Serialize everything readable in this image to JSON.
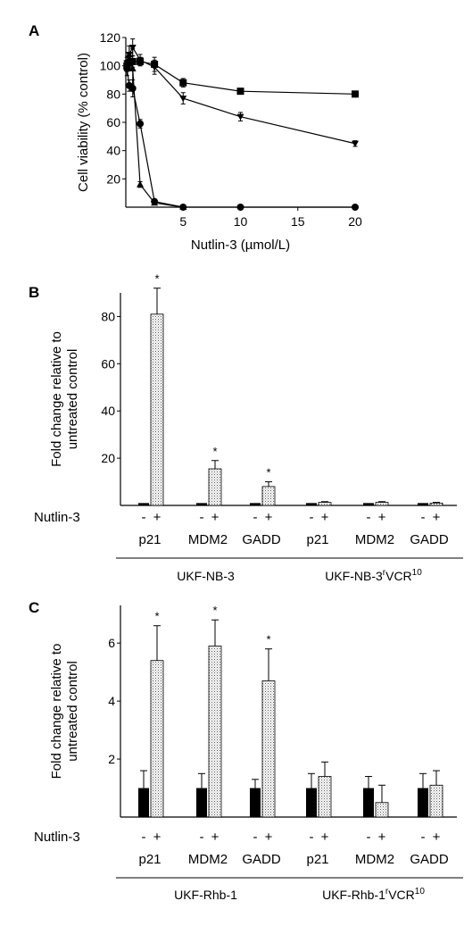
{
  "panels": {
    "A": "A",
    "B": "B",
    "C": "C"
  },
  "chart_data": [
    {
      "type": "line",
      "panel": "A",
      "xlabel": "Nutlin-3 (µmol/L)",
      "ylabel": "Cell viability (% control)",
      "xlim": [
        0,
        20
      ],
      "ylim": [
        0,
        120
      ],
      "xticks": [
        5,
        10,
        15,
        20
      ],
      "yticks": [
        20,
        40,
        60,
        80,
        100,
        120
      ],
      "series": [
        {
          "marker": "square",
          "x": [
            0.1,
            0.3,
            0.6,
            1.25,
            2.5,
            5,
            10,
            20
          ],
          "y": [
            100,
            102,
            103,
            103,
            101,
            88,
            82,
            80
          ],
          "err": [
            3,
            4,
            4,
            3,
            5,
            3,
            2,
            2
          ]
        },
        {
          "marker": "triangle-down",
          "x": [
            0.1,
            0.3,
            0.6,
            1.25,
            2.5,
            5,
            10,
            20
          ],
          "y": [
            102,
            108,
            113,
            104,
            99,
            77,
            64,
            45
          ],
          "err": [
            4,
            6,
            6,
            4,
            5,
            4,
            3,
            2
          ]
        },
        {
          "marker": "circle",
          "x": [
            0.1,
            0.3,
            0.6,
            1.25,
            2.5,
            5,
            10,
            20
          ],
          "y": [
            98,
            86,
            84,
            59,
            4,
            0,
            0,
            0
          ],
          "err": [
            5,
            4,
            6,
            3,
            1,
            0,
            0,
            0
          ]
        },
        {
          "marker": "triangle-up",
          "x": [
            0.1,
            0.3,
            0.6,
            1.25,
            2.5,
            5
          ],
          "y": [
            100,
            108,
            98,
            16,
            3,
            0
          ],
          "err": [
            4,
            6,
            14,
            2,
            1,
            0
          ]
        }
      ]
    },
    {
      "type": "bar",
      "panel": "B",
      "ylabel": "Fold change relative to untreated control",
      "ylim": [
        0,
        90
      ],
      "yticks": [
        20,
        40,
        60,
        80
      ],
      "row_label": "Nutlin-3",
      "signs": [
        "-",
        "+"
      ],
      "categories": [
        "p21",
        "MDM2",
        "GADD",
        "p21",
        "MDM2",
        "GADD"
      ],
      "groups": [
        {
          "name": "UKF-NB-3",
          "sup": ""
        },
        {
          "name": "UKF-NB-3",
          "sup": "r",
          "suffix": "VCR",
          "suffix_sup": "10"
        }
      ],
      "series": [
        {
          "name": "-",
          "values": [
            1,
            1,
            1,
            1,
            1,
            1
          ],
          "err": [
            0,
            0,
            0,
            0,
            0,
            0
          ]
        },
        {
          "name": "+",
          "values": [
            81,
            15.5,
            8,
            1.3,
            1.3,
            1.0
          ],
          "err": [
            11,
            3.5,
            2,
            0.3,
            0.3,
            0.3
          ]
        }
      ],
      "significant": [
        true,
        true,
        true,
        false,
        false,
        false
      ]
    },
    {
      "type": "bar",
      "panel": "C",
      "ylabel": "Fold change relative to untreated control",
      "ylim": [
        0,
        7.3
      ],
      "yticks": [
        2,
        4,
        6
      ],
      "row_label": "Nutlin-3",
      "signs": [
        "-",
        "+"
      ],
      "categories": [
        "p21",
        "MDM2",
        "GADD",
        "p21",
        "MDM2",
        "GADD"
      ],
      "groups": [
        {
          "name": "UKF-Rhb-1",
          "sup": ""
        },
        {
          "name": "UKF-Rhb-1",
          "sup": "r",
          "suffix": "VCR",
          "suffix_sup": "10"
        }
      ],
      "series": [
        {
          "name": "-",
          "values": [
            1,
            1,
            1,
            1,
            1,
            1
          ],
          "err": [
            0.6,
            0.5,
            0.3,
            0.5,
            0.4,
            0.5
          ]
        },
        {
          "name": "+",
          "values": [
            5.4,
            5.9,
            4.7,
            1.4,
            0.5,
            1.1
          ],
          "err": [
            1.2,
            0.9,
            1.1,
            0.5,
            0.6,
            0.5
          ]
        }
      ],
      "significant": [
        true,
        true,
        true,
        false,
        false,
        false
      ]
    }
  ]
}
